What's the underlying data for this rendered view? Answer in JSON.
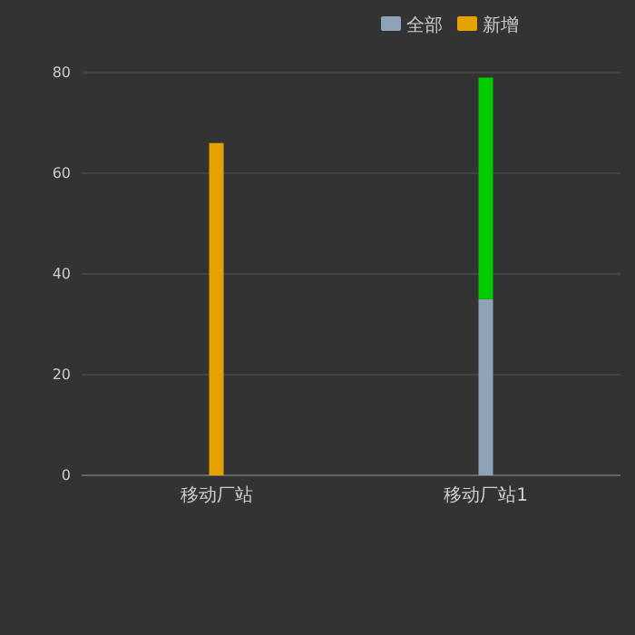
{
  "chart_data": {
    "type": "bar",
    "categories": [
      "移动厂站",
      "移动厂站1"
    ],
    "series": [
      {
        "name": "全部",
        "color": "#8fa3b8",
        "values": [
          0,
          35
        ]
      },
      {
        "color": "#00cc00",
        "values": [
          0,
          44
        ]
      },
      {
        "name": "新增",
        "color": "#e6a100",
        "values": [
          66,
          0
        ]
      }
    ],
    "stacked": true,
    "ylim": [
      0,
      80
    ],
    "yticks": [
      0,
      20,
      40,
      60,
      80
    ],
    "grid": "y",
    "legend": "top right"
  }
}
